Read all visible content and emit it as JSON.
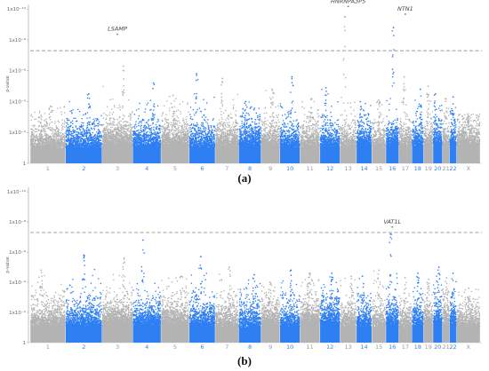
{
  "colors": {
    "gray": "#b3b3b3",
    "blue": "#2e7ff2",
    "threshold": "#999999",
    "gray_label": "#9a9a9a",
    "blue_label": "#3f7fd8"
  },
  "chart_data": [
    {
      "type": "scatter",
      "panel_label": "(a)",
      "ylabel": "p-value",
      "y_scale": "log",
      "y_tick_labels": [
        "1",
        "1x10⁻²",
        "1x10⁻⁴",
        "1x10⁻⁶",
        "1x10⁻⁸",
        "1x10⁻¹⁰"
      ],
      "y_tick_exponents": [
        0,
        2,
        4,
        6,
        8,
        10
      ],
      "threshold_exponent": 7.3,
      "chromosomes": [
        "1",
        "2",
        "3",
        "4",
        "5",
        "6",
        "7",
        "8",
        "9",
        "10",
        "11",
        "12",
        "13",
        "14",
        "15",
        "16",
        "17",
        "18",
        "19",
        "20",
        "21",
        "22",
        "X"
      ],
      "chromosome_colors": [
        "gray",
        "blue",
        "gray",
        "blue",
        "gray",
        "blue",
        "gray",
        "blue",
        "gray",
        "blue",
        "gray",
        "blue",
        "gray",
        "blue",
        "gray",
        "blue",
        "gray",
        "blue",
        "gray",
        "blue",
        "gray",
        "blue",
        "gray"
      ],
      "chromosome_peak_exponents": [
        3.7,
        4.5,
        6.3,
        5.2,
        4.4,
        5.8,
        5.5,
        4.0,
        4.8,
        5.6,
        4.2,
        4.9,
        9.5,
        4.0,
        4.1,
        8.8,
        5.6,
        4.8,
        5.0,
        4.5,
        4.2,
        4.3,
        3.2
      ],
      "annotations": [
        {
          "text": "LSAMP",
          "chromosome": "3",
          "exponent": 8.6
        },
        {
          "text": "HNRNPA3P5",
          "chromosome": "13",
          "exponent": 10.4
        },
        {
          "text": "NTN1",
          "chromosome": "17",
          "exponent": 9.9
        }
      ]
    },
    {
      "type": "scatter",
      "panel_label": "(b)",
      "ylabel": "p-value",
      "y_scale": "log",
      "y_tick_labels": [
        "1",
        "1x10⁻²",
        "1x10⁻⁴",
        "1x10⁻⁶",
        "1x10⁻⁸",
        "1x10⁻¹⁰"
      ],
      "y_tick_exponents": [
        0,
        2,
        4,
        6,
        8,
        10
      ],
      "threshold_exponent": 7.3,
      "chromosomes": [
        "1",
        "2",
        "3",
        "4",
        "5",
        "6",
        "7",
        "8",
        "9",
        "10",
        "11",
        "12",
        "13",
        "14",
        "15",
        "16",
        "17",
        "18",
        "19",
        "20",
        "21",
        "22",
        "X"
      ],
      "chromosome_colors": [
        "gray",
        "blue",
        "gray",
        "blue",
        "gray",
        "blue",
        "gray",
        "blue",
        "gray",
        "blue",
        "gray",
        "blue",
        "gray",
        "blue",
        "gray",
        "blue",
        "gray",
        "blue",
        "gray",
        "blue",
        "gray",
        "blue",
        "gray"
      ],
      "chromosome_peak_exponents": [
        4.8,
        5.8,
        5.6,
        6.8,
        4.4,
        5.7,
        5.0,
        4.5,
        4.0,
        4.8,
        4.6,
        4.6,
        4.4,
        4.4,
        4.8,
        7.2,
        4.3,
        4.6,
        4.2,
        5.0,
        4.3,
        4.6,
        3.6
      ],
      "annotations": [
        {
          "text": "VAT1L",
          "chromosome": "16",
          "exponent": 7.9
        }
      ]
    }
  ]
}
